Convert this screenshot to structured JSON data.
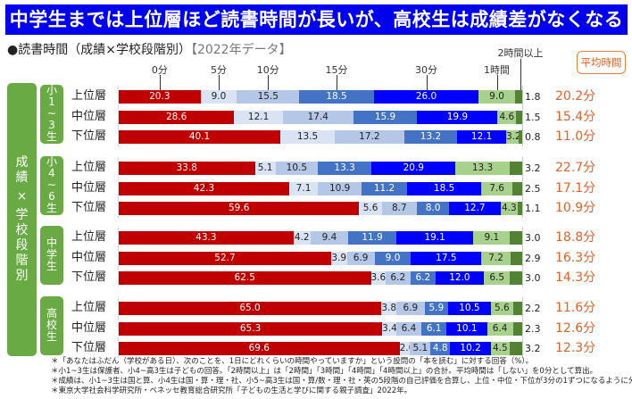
{
  "title": "中学生までは上位層ほど読書時間が長いが、高校生は成績差がなくなる",
  "subtitle": {
    "main": "●読書時間（成績×学校段階別）",
    "year": "【2022年データ】"
  },
  "avg_header": "平均時間",
  "main_group_label": "成績×学校段階別",
  "colors": {
    "seg0": "#c00000",
    "seg1": "#dae3f3",
    "seg2": "#b4c7e7",
    "seg3": "#4472c4",
    "seg4": "#0000ff",
    "seg5": "#a9d18e",
    "seg6": "#548235",
    "avg_text": "#e0612a",
    "group_green": "#6aaa45",
    "title_bg": "#0000ee"
  },
  "chart_data": {
    "type": "bar",
    "orientation": "horizontal-stacked-100",
    "title": "読書時間（成績×学校段階別）【2022年データ】",
    "unit": "%",
    "series_names": [
      "0分",
      "5分",
      "10分",
      "15分",
      "30分",
      "1時間",
      "2時間以上"
    ],
    "series_colors": [
      "#c00000",
      "#dae3f3",
      "#b4c7e7",
      "#4472c4",
      "#0000ff",
      "#a9d18e",
      "#548235"
    ],
    "extra_label": "平均時間",
    "groups": [
      {
        "label": "小1~3生",
        "label_lines": [
          "小",
          "1",
          "~",
          "3",
          "生"
        ],
        "rows": [
          {
            "label": "上位層",
            "values": [
              20.3,
              9.0,
              15.5,
              18.5,
              26.0,
              9.0,
              1.8
            ],
            "avg": "20.2分"
          },
          {
            "label": "中位層",
            "values": [
              28.6,
              12.1,
              17.4,
              15.9,
              19.9,
              4.6,
              1.5
            ],
            "avg": "15.4分"
          },
          {
            "label": "下位層",
            "values": [
              40.1,
              13.5,
              17.2,
              13.2,
              12.1,
              3.2,
              0.8
            ],
            "avg": "11.0分"
          }
        ]
      },
      {
        "label": "小4~6生",
        "label_lines": [
          "小",
          "4",
          "~",
          "6",
          "生"
        ],
        "rows": [
          {
            "label": "上位層",
            "values": [
              33.8,
              5.1,
              10.5,
              13.3,
              20.9,
              13.3,
              3.2
            ],
            "avg": "22.7分"
          },
          {
            "label": "中位層",
            "values": [
              42.3,
              7.1,
              10.9,
              11.2,
              18.5,
              7.6,
              2.5
            ],
            "avg": "17.1分"
          },
          {
            "label": "下位層",
            "values": [
              59.6,
              5.6,
              8.7,
              8.0,
              12.7,
              4.3,
              1.1
            ],
            "avg": "10.9分"
          }
        ]
      },
      {
        "label": "中学生",
        "label_lines": [
          "中",
          "学",
          "生"
        ],
        "rows": [
          {
            "label": "上位層",
            "values": [
              43.3,
              4.2,
              9.4,
              11.9,
              19.1,
              9.1,
              3.0
            ],
            "avg": "18.8分"
          },
          {
            "label": "中位層",
            "values": [
              52.7,
              3.9,
              6.9,
              9.0,
              17.5,
              7.2,
              2.9
            ],
            "avg": "16.3分"
          },
          {
            "label": "下位層",
            "values": [
              62.5,
              3.6,
              6.2,
              6.2,
              12.0,
              6.5,
              3.0
            ],
            "avg": "14.3分"
          }
        ]
      },
      {
        "label": "高校生",
        "label_lines": [
          "高",
          "校",
          "生"
        ],
        "rows": [
          {
            "label": "上位層",
            "values": [
              65.0,
              3.8,
              6.9,
              5.9,
              10.5,
              5.6,
              2.2
            ],
            "avg": "11.6分"
          },
          {
            "label": "中位層",
            "values": [
              65.3,
              3.4,
              6.4,
              6.1,
              10.1,
              6.4,
              2.3
            ],
            "avg": "12.6分"
          },
          {
            "label": "下位層",
            "values": [
              69.6,
              2.6,
              5.1,
              4.8,
              10.2,
              4.5,
              3.2
            ],
            "avg": "12.3分"
          }
        ]
      }
    ]
  },
  "notes": [
    "＊「あなたはふだん（学校がある日）、次のことを、1日にどれくらいの時間やっていますか」という設問の「本を読む」に対する回答（%）。",
    "＊小1~3生は保護者、小4~高3生は子どもの回答。「2時間以上」は「2時間」「3時間」「4時間」「4時間以上」の合計。平均時間は「しない」を0分として算出。",
    "＊成績は、小1~3生は国と算、小4生は国・算・理・社、小5~高3生は国・算/数・理・社・英の5段階の自己評価を合算し、上位・中位・下位が3分の1ずつになるように分けた。",
    "＊東京大学社会科学研究所・ベネッセ教育総合研究所「子どもの生活と学びに関する親子調査」2022年。"
  ]
}
